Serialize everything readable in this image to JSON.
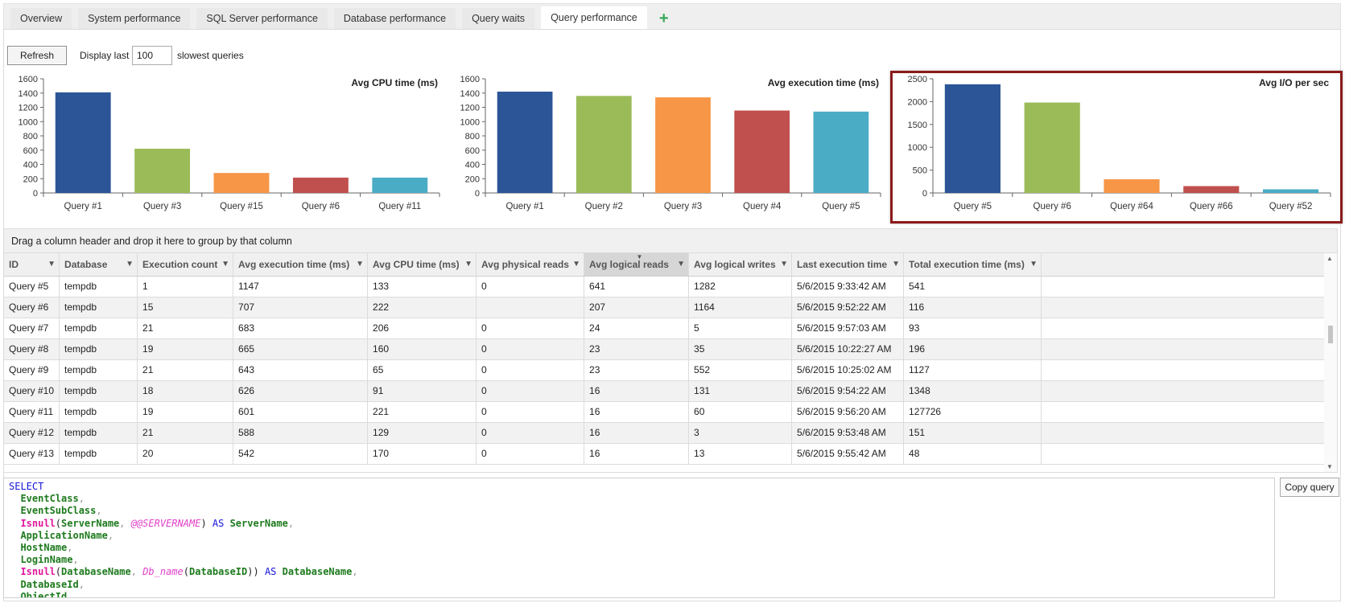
{
  "tabs": [
    {
      "label": "Overview",
      "active": false
    },
    {
      "label": "System performance",
      "active": false
    },
    {
      "label": "SQL Server performance",
      "active": false
    },
    {
      "label": "Database performance",
      "active": false
    },
    {
      "label": "Query waits",
      "active": false
    },
    {
      "label": "Query performance",
      "active": true
    }
  ],
  "add_tab_icon": "plus-icon",
  "toolbar": {
    "refresh_label": "Refresh",
    "display_label": "Display last",
    "count_value": "100",
    "slowest_label": "slowest queries"
  },
  "chart_data": [
    {
      "type": "bar",
      "title": "Avg CPU time (ms)",
      "categories": [
        "Query #1",
        "Query #3",
        "Query #15",
        "Query #6",
        "Query #11"
      ],
      "values": [
        1410,
        620,
        280,
        215,
        215
      ],
      "ylim": [
        0,
        1600
      ],
      "yticks": [
        0,
        200,
        400,
        600,
        800,
        1000,
        1200,
        1400,
        1600
      ],
      "colors": [
        "#2b5597",
        "#9bbb59",
        "#f79646",
        "#c0504d",
        "#4bacc6"
      ],
      "grid": false
    },
    {
      "type": "bar",
      "title": "Avg execution time (ms)",
      "categories": [
        "Query #1",
        "Query #2",
        "Query #3",
        "Query #4",
        "Query #5"
      ],
      "values": [
        1420,
        1360,
        1340,
        1155,
        1140
      ],
      "ylim": [
        0,
        1600
      ],
      "yticks": [
        0,
        200,
        400,
        600,
        800,
        1000,
        1200,
        1400,
        1600
      ],
      "colors": [
        "#2b5597",
        "#9bbb59",
        "#f79646",
        "#c0504d",
        "#4bacc6"
      ],
      "grid": false
    },
    {
      "type": "bar",
      "title": "Avg I/O per sec",
      "categories": [
        "Query #5",
        "Query #6",
        "Query #64",
        "Query #66",
        "Query #52"
      ],
      "values": [
        2380,
        1980,
        300,
        150,
        80
      ],
      "ylim": [
        0,
        2500
      ],
      "yticks": [
        0,
        500,
        1000,
        1500,
        2000,
        2500
      ],
      "colors": [
        "#2b5597",
        "#9bbb59",
        "#f79646",
        "#c0504d",
        "#4bacc6"
      ],
      "grid": false
    }
  ],
  "grid": {
    "group_hint": "Drag a column header and drop it here to group by that column",
    "columns": [
      "ID",
      "Database",
      "Execution count",
      "Avg execution time (ms)",
      "Avg CPU time (ms)",
      "Avg physical reads",
      "Avg logical reads",
      "Avg logical writes",
      "Last execution time",
      "Total execution time (ms)"
    ],
    "sorted_column": "Avg logical reads",
    "rows": [
      [
        "Query #5",
        "tempdb",
        "1",
        "1147",
        "133",
        "0",
        "641",
        "1282",
        "5/6/2015 9:33:42 AM",
        "541"
      ],
      [
        "Query #6",
        "tempdb",
        "15",
        "707",
        "222",
        "",
        "207",
        "1164",
        "5/6/2015 9:52:22 AM",
        "116"
      ],
      [
        "Query #7",
        "tempdb",
        "21",
        "683",
        "206",
        "0",
        "24",
        "5",
        "5/6/2015 9:57:03 AM",
        "93"
      ],
      [
        "Query #8",
        "tempdb",
        "19",
        "665",
        "160",
        "0",
        "23",
        "35",
        "5/6/2015 10:22:27 AM",
        "196"
      ],
      [
        "Query #9",
        "tempdb",
        "21",
        "643",
        "65",
        "0",
        "23",
        "552",
        "5/6/2015 10:25:02 AM",
        "1127"
      ],
      [
        "Query #10",
        "tempdb",
        "18",
        "626",
        "91",
        "0",
        "16",
        "131",
        "5/6/2015 9:54:22 AM",
        "1348"
      ],
      [
        "Query #11",
        "tempdb",
        "19",
        "601",
        "221",
        "0",
        "16",
        "60",
        "5/6/2015 9:56:20 AM",
        "127726"
      ],
      [
        "Query #12",
        "tempdb",
        "21",
        "588",
        "129",
        "0",
        "16",
        "3",
        "5/6/2015 9:53:48 AM",
        "151"
      ],
      [
        "Query #13",
        "tempdb",
        "20",
        "542",
        "170",
        "0",
        "16",
        "13",
        "5/6/2015 9:55:42 AM",
        "48"
      ]
    ]
  },
  "sql": {
    "lines": [
      [
        {
          "t": "SELECT",
          "c": "kw"
        }
      ],
      [
        {
          "t": "  EventClass",
          "c": "id"
        },
        {
          "t": ",",
          "c": "pn"
        }
      ],
      [
        {
          "t": "  EventSubClass",
          "c": "id"
        },
        {
          "t": ",",
          "c": "pn"
        }
      ],
      [
        {
          "t": "  Isnull",
          "c": "fn"
        },
        {
          "t": "(",
          "c": ""
        },
        {
          "t": "ServerName",
          "c": "id"
        },
        {
          "t": ", ",
          "c": "pn"
        },
        {
          "t": "@@SERVERNAME",
          "c": "var"
        },
        {
          "t": ") ",
          "c": ""
        },
        {
          "t": "AS ",
          "c": "kw"
        },
        {
          "t": "ServerName",
          "c": "id"
        },
        {
          "t": ",",
          "c": "pn"
        }
      ],
      [
        {
          "t": "  ApplicationName",
          "c": "id"
        },
        {
          "t": ",",
          "c": "pn"
        }
      ],
      [
        {
          "t": "  HostName",
          "c": "id"
        },
        {
          "t": ",",
          "c": "pn"
        }
      ],
      [
        {
          "t": "  LoginName",
          "c": "id"
        },
        {
          "t": ",",
          "c": "pn"
        }
      ],
      [
        {
          "t": "  Isnull",
          "c": "fn"
        },
        {
          "t": "(",
          "c": ""
        },
        {
          "t": "DatabaseName",
          "c": "id"
        },
        {
          "t": ", ",
          "c": "pn"
        },
        {
          "t": "Db_name",
          "c": "var"
        },
        {
          "t": "(",
          "c": ""
        },
        {
          "t": "DatabaseID",
          "c": "id"
        },
        {
          "t": ")) ",
          "c": ""
        },
        {
          "t": "AS ",
          "c": "kw"
        },
        {
          "t": "DatabaseName",
          "c": "id"
        },
        {
          "t": ",",
          "c": "pn"
        }
      ],
      [
        {
          "t": "  DatabaseId",
          "c": "id"
        },
        {
          "t": ",",
          "c": "pn"
        }
      ],
      [
        {
          "t": "  ObjectId",
          "c": "id"
        },
        {
          "t": ",",
          "c": "pn"
        }
      ]
    ]
  },
  "copy_label": "Copy query"
}
